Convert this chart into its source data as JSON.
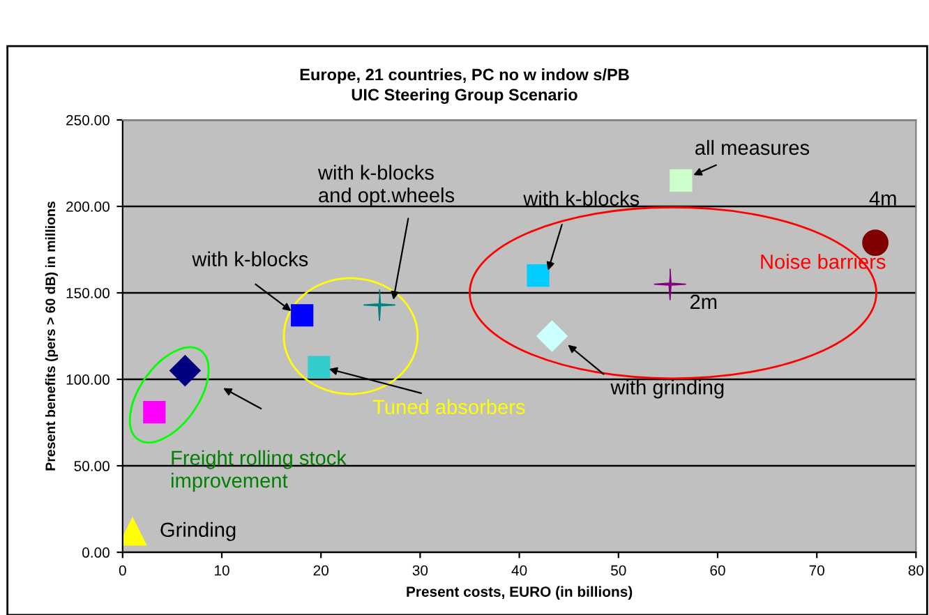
{
  "chart_data": {
    "type": "scatter",
    "title": "Europe, 21 countries, PC no w indow s/PB\nUIC Steering Group Scenario",
    "xlabel": "Present costs, EURO (in billions)",
    "ylabel": "Present benefits (pers > 60 dB) in millions",
    "xlim": [
      0,
      80
    ],
    "xticks": [
      0,
      10,
      20,
      30,
      40,
      50,
      60,
      70,
      80
    ],
    "ylim": [
      0,
      250
    ],
    "yticks": [
      {
        "value": 0,
        "label": "0.00"
      },
      {
        "value": 50,
        "label": "50.00"
      },
      {
        "value": 100,
        "label": "100.00"
      },
      {
        "value": 150,
        "label": "150.00"
      },
      {
        "value": 200,
        "label": "200.00"
      },
      {
        "value": 250,
        "label": "250.00"
      }
    ],
    "grid": "y",
    "legend": false,
    "series": [
      {
        "x": [
          1.0
        ],
        "values": [
          12
        ],
        "color": "#ffff00",
        "marker": "triangle"
      },
      {
        "x": [
          3.2
        ],
        "values": [
          81
        ],
        "color": "#ff00ff",
        "marker": "square"
      },
      {
        "x": [
          6.3
        ],
        "values": [
          105
        ],
        "color": "#000080",
        "marker": "diamond"
      },
      {
        "x": [
          18.1
        ],
        "values": [
          137
        ],
        "color": "#0000ff",
        "marker": "square"
      },
      {
        "x": [
          25.9
        ],
        "values": [
          143
        ],
        "color": "#008080",
        "marker": "cross"
      },
      {
        "x": [
          19.8
        ],
        "values": [
          107
        ],
        "color": "#33cccc",
        "marker": "square"
      },
      {
        "x": [
          41.9
        ],
        "values": [
          160
        ],
        "color": "#00ccff",
        "marker": "square"
      },
      {
        "x": [
          56.3
        ],
        "values": [
          215
        ],
        "color": "#ccffcc",
        "marker": "square"
      },
      {
        "x": [
          55.2
        ],
        "values": [
          155
        ],
        "color": "#800080",
        "marker": "cross"
      },
      {
        "x": [
          43.3
        ],
        "values": [
          125
        ],
        "color": "#ccffff",
        "marker": "diamond"
      },
      {
        "x": [
          75.9
        ],
        "values": [
          179
        ],
        "color": "#800000",
        "marker": "circle"
      }
    ],
    "annotations": [
      {
        "text": "with k-blocks",
        "x": 17.0,
        "y": 139.5
      },
      {
        "text": "with k-blocks\nand opt.wheels",
        "x": 27.3,
        "y": 146
      },
      {
        "text": "Tuned absorbers",
        "x": 20.8,
        "y": 106
      },
      "Freight rolling stock\nimprovement",
      {
        "text": "Grinding",
        "x": 1.0,
        "y": 12
      },
      {
        "text": "with k-blocks",
        "x": 42.9,
        "y": 163
      },
      {
        "text": "all measures",
        "x": 56.3,
        "y": 215
      },
      {
        "text": "4m",
        "x": 75.9,
        "y": 179
      },
      {
        "text": "2m",
        "x": 55.2,
        "y": 155
      },
      "Noise barriers",
      {
        "text": "with grinding",
        "x": 44.9,
        "y": 120
      }
    ]
  }
}
